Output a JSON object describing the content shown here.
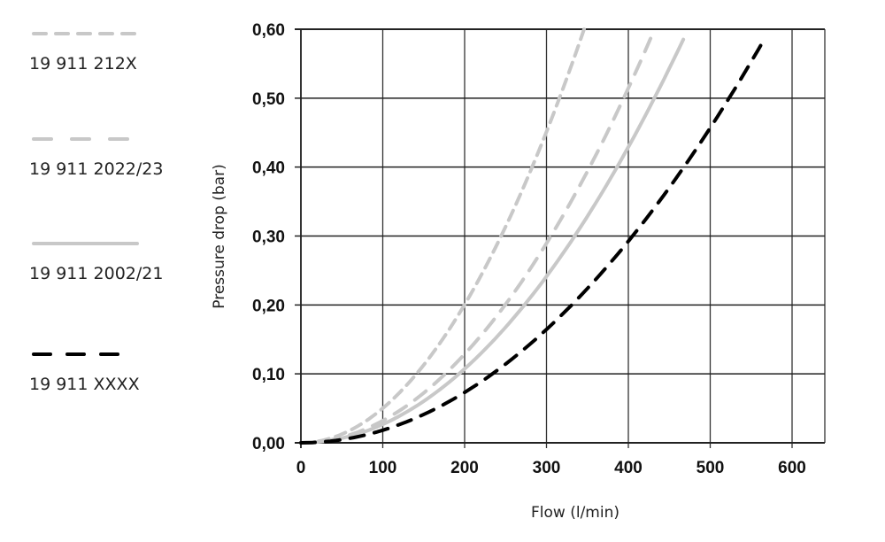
{
  "chart_data": {
    "type": "line",
    "title": "",
    "xlabel": "Flow (l/min)",
    "ylabel": "Pressure drop (bar)",
    "xlim": [
      0,
      640
    ],
    "ylim": [
      0,
      0.6
    ],
    "x_ticks": [
      0,
      100,
      200,
      300,
      400,
      500,
      600
    ],
    "x_tick_labels": [
      "0",
      "100",
      "200",
      "300",
      "400",
      "500",
      "600"
    ],
    "y_ticks": [
      0,
      0.1,
      0.2,
      0.3,
      0.4,
      0.5,
      0.6
    ],
    "y_tick_labels": [
      "0,00",
      "0,10",
      "0,20",
      "0,30",
      "0,40",
      "0,50",
      "0,60"
    ],
    "grid": true,
    "legend_placement": "left",
    "series": [
      {
        "name": "19 911 212X",
        "color": "#c8c8c8",
        "style": "short-dash",
        "x": [
          0,
          50,
          100,
          150,
          200,
          250,
          300,
          346
        ],
        "y": [
          0,
          0.0125,
          0.05,
          0.1125,
          0.2,
          0.3125,
          0.45,
          0.6
        ]
      },
      {
        "name": "19 911 2022/23",
        "color": "#c8c8c8",
        "style": "dash",
        "x": [
          0,
          50,
          100,
          150,
          200,
          250,
          300,
          350,
          400,
          432
        ],
        "y": [
          0,
          0.008,
          0.032,
          0.072,
          0.128,
          0.2,
          0.288,
          0.392,
          0.512,
          0.6
        ]
      },
      {
        "name": "19 911 2002/21",
        "color": "#c8c8c8",
        "style": "solid",
        "x": [
          0,
          50,
          100,
          150,
          200,
          250,
          300,
          350,
          400,
          450,
          473
        ],
        "y": [
          0,
          0.0067,
          0.0268,
          0.0603,
          0.107,
          0.1675,
          0.241,
          0.328,
          0.429,
          0.543,
          0.6
        ]
      },
      {
        "name": "19 911 XXXX",
        "color": "#000000",
        "style": "dash",
        "x": [
          0,
          50,
          100,
          150,
          200,
          250,
          300,
          350,
          400,
          450,
          500,
          550,
          573
        ],
        "y": [
          0,
          0.0046,
          0.0183,
          0.0412,
          0.0732,
          0.114,
          0.165,
          0.224,
          0.293,
          0.371,
          0.457,
          0.553,
          0.6
        ]
      }
    ]
  }
}
